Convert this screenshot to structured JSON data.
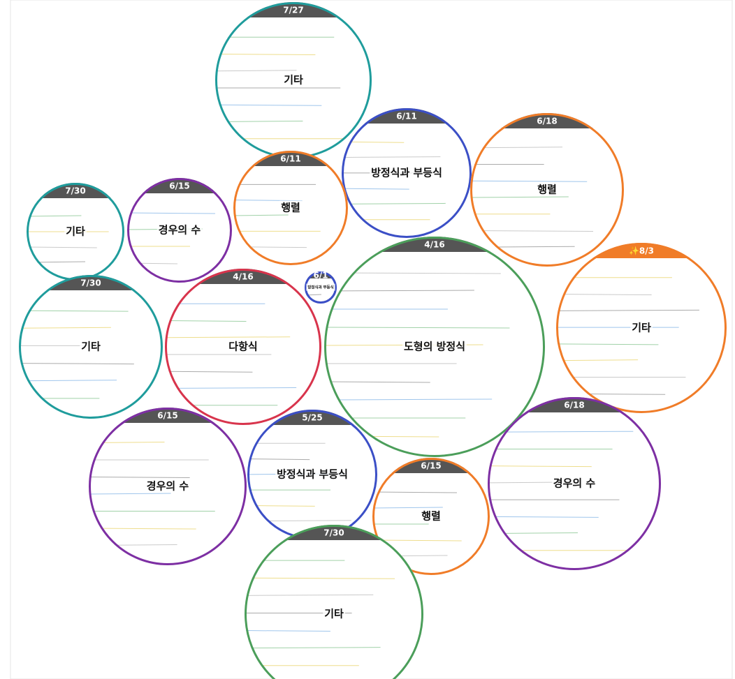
{
  "bubbles": [
    {
      "date": "7/27",
      "topic": "기타",
      "color": "#1f9c9c"
    },
    {
      "date": "6/11",
      "topic": "방정식과 부등식",
      "color": "#3b4fc6"
    },
    {
      "date": "6/18",
      "topic": "행렬",
      "color": "#f07c28"
    },
    {
      "date": "6/11",
      "topic": "행렬",
      "color": "#f07c28"
    },
    {
      "date": "6/15",
      "topic": "경우의 수",
      "color": "#7d2fa3"
    },
    {
      "date": "7/30",
      "topic": "기타",
      "color": "#1f9c9c"
    },
    {
      "date": "✨8/3",
      "topic": "기타",
      "color": "#f07c28",
      "header_color": "#f07c28"
    },
    {
      "date": "4/16",
      "topic": "도형의 방정식",
      "color": "#4b9e5a"
    },
    {
      "date": "6/1",
      "topic": "방정식과 부등식",
      "color": "#3b4fc6"
    },
    {
      "date": "4/16",
      "topic": "다항식",
      "color": "#d8344c"
    },
    {
      "date": "7/30",
      "topic": "기타",
      "color": "#1f9c9c"
    },
    {
      "date": "6/15",
      "topic": "경우의 수",
      "color": "#7d2fa3"
    },
    {
      "date": "5/25",
      "topic": "방정식과 부등식",
      "color": "#3b4fc6"
    },
    {
      "date": "6/15",
      "topic": "행렬",
      "color": "#f07c28"
    },
    {
      "date": "6/18",
      "topic": "경우의 수",
      "color": "#7d2fa3"
    },
    {
      "date": "7/30",
      "topic": "기타",
      "color": "#4b9e5a"
    }
  ]
}
